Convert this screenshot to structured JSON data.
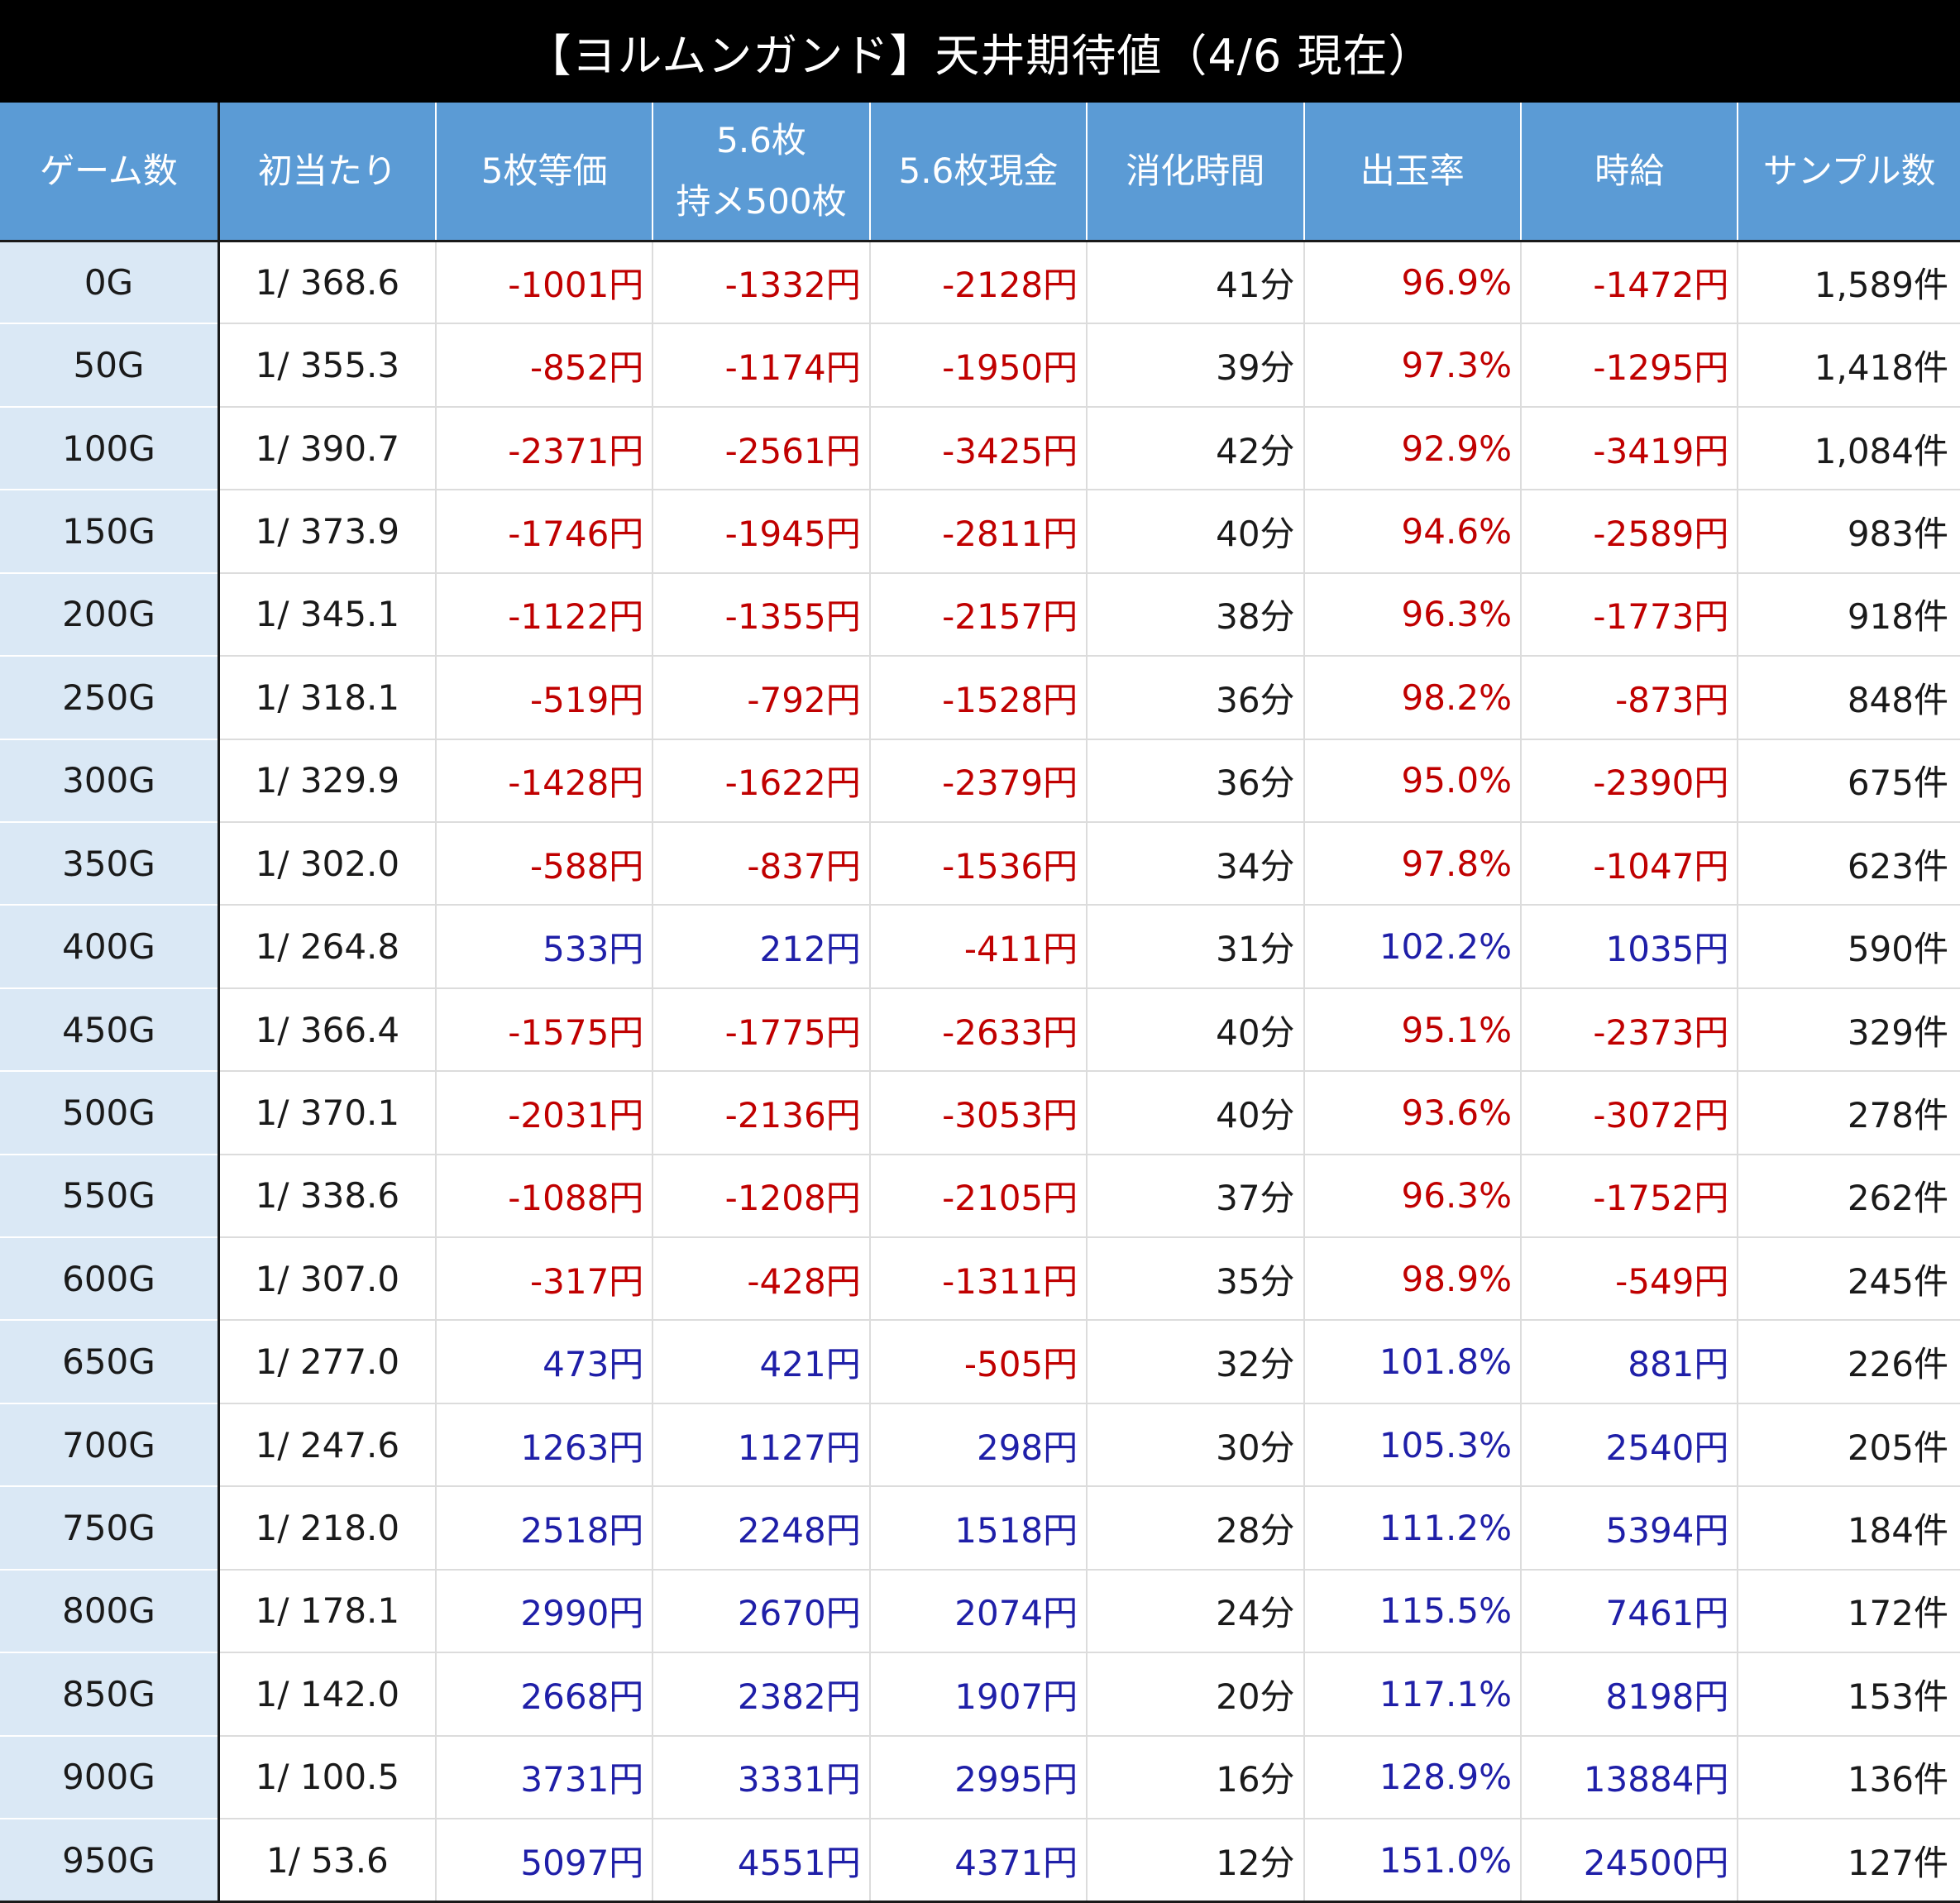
{
  "title": "【ヨルムンガンド】天井期待値（4/6 現在）",
  "headers": [
    [
      "ゲーム数"
    ],
    [
      "初当たり"
    ],
    [
      "5枚等価"
    ],
    [
      "5.6枚",
      "持メ500枚"
    ],
    [
      "5.6枚現金"
    ],
    [
      "消化時間"
    ],
    [
      "出玉率"
    ],
    [
      "時給"
    ],
    [
      "サンプル数"
    ]
  ],
  "colors": {
    "header_bg": "#5b9bd5",
    "game_col_bg": "#dae8f5",
    "negative": "#c00000",
    "positive": "#1f1fa8",
    "title_bg": "#000000"
  },
  "rows": [
    [
      "0G",
      "1/ 368.6",
      "-1001円",
      "-1332円",
      "-2128円",
      "41分",
      "96.9%",
      "-1472円",
      "1,589件"
    ],
    [
      "50G",
      "1/ 355.3",
      "-852円",
      "-1174円",
      "-1950円",
      "39分",
      "97.3%",
      "-1295円",
      "1,418件"
    ],
    [
      "100G",
      "1/ 390.7",
      "-2371円",
      "-2561円",
      "-3425円",
      "42分",
      "92.9%",
      "-3419円",
      "1,084件"
    ],
    [
      "150G",
      "1/ 373.9",
      "-1746円",
      "-1945円",
      "-2811円",
      "40分",
      "94.6%",
      "-2589円",
      "983件"
    ],
    [
      "200G",
      "1/ 345.1",
      "-1122円",
      "-1355円",
      "-2157円",
      "38分",
      "96.3%",
      "-1773円",
      "918件"
    ],
    [
      "250G",
      "1/ 318.1",
      "-519円",
      "-792円",
      "-1528円",
      "36分",
      "98.2%",
      "-873円",
      "848件"
    ],
    [
      "300G",
      "1/ 329.9",
      "-1428円",
      "-1622円",
      "-2379円",
      "36分",
      "95.0%",
      "-2390円",
      "675件"
    ],
    [
      "350G",
      "1/ 302.0",
      "-588円",
      "-837円",
      "-1536円",
      "34分",
      "97.8%",
      "-1047円",
      "623件"
    ],
    [
      "400G",
      "1/ 264.8",
      "533円",
      "212円",
      "-411円",
      "31分",
      "102.2%",
      "1035円",
      "590件"
    ],
    [
      "450G",
      "1/ 366.4",
      "-1575円",
      "-1775円",
      "-2633円",
      "40分",
      "95.1%",
      "-2373円",
      "329件"
    ],
    [
      "500G",
      "1/ 370.1",
      "-2031円",
      "-2136円",
      "-3053円",
      "40分",
      "93.6%",
      "-3072円",
      "278件"
    ],
    [
      "550G",
      "1/ 338.6",
      "-1088円",
      "-1208円",
      "-2105円",
      "37分",
      "96.3%",
      "-1752円",
      "262件"
    ],
    [
      "600G",
      "1/ 307.0",
      "-317円",
      "-428円",
      "-1311円",
      "35分",
      "98.9%",
      "-549円",
      "245件"
    ],
    [
      "650G",
      "1/ 277.0",
      "473円",
      "421円",
      "-505円",
      "32分",
      "101.8%",
      "881円",
      "226件"
    ],
    [
      "700G",
      "1/ 247.6",
      "1263円",
      "1127円",
      "298円",
      "30分",
      "105.3%",
      "2540円",
      "205件"
    ],
    [
      "750G",
      "1/ 218.0",
      "2518円",
      "2248円",
      "1518円",
      "28分",
      "111.2%",
      "5394円",
      "184件"
    ],
    [
      "800G",
      "1/ 178.1",
      "2990円",
      "2670円",
      "2074円",
      "24分",
      "115.5%",
      "7461円",
      "172件"
    ],
    [
      "850G",
      "1/ 142.0",
      "2668円",
      "2382円",
      "1907円",
      "20分",
      "117.1%",
      "8198円",
      "153件"
    ],
    [
      "900G",
      "1/ 100.5",
      "3731円",
      "3331円",
      "2995円",
      "16分",
      "128.9%",
      "13884円",
      "136件"
    ],
    [
      "950G",
      "1/ 53.6",
      "5097円",
      "4551円",
      "4371円",
      "12分",
      "151.0%",
      "24500円",
      "127件"
    ]
  ]
}
